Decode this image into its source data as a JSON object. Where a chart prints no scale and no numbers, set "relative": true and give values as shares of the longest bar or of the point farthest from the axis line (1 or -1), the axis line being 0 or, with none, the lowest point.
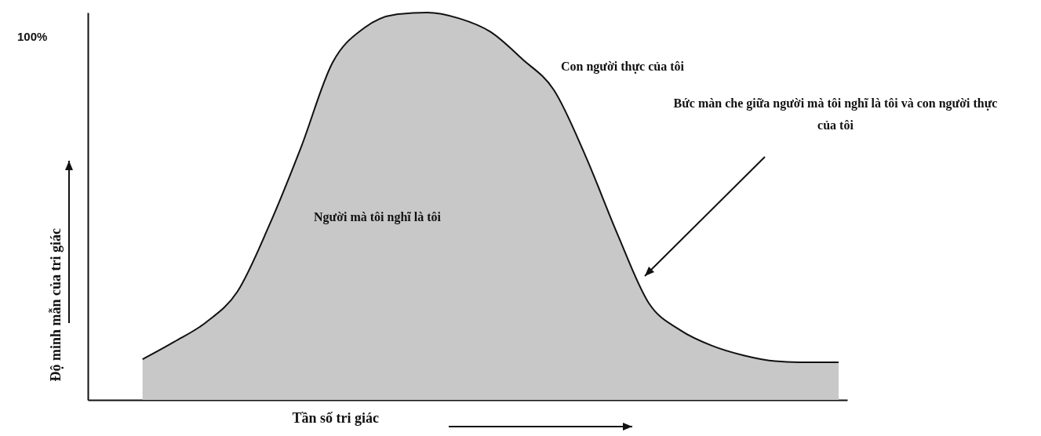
{
  "chart_data": {
    "type": "area",
    "relative": true,
    "xlabel": "Tần số tri giác",
    "ylabel": "Độ minh mẫn của tri giác",
    "categories": [
      null,
      null,
      null,
      null,
      null,
      null,
      null,
      null,
      null,
      null,
      null,
      null,
      null,
      null,
      null,
      null,
      null,
      null,
      null,
      null,
      null,
      null,
      null
    ],
    "series": [
      {
        "color": "#c8c8c8",
        "values": [
          0.105,
          0.15,
          0.2,
          0.28,
          0.45,
          0.65,
          0.87,
          0.96,
          0.995,
          1.0,
          0.985,
          0.95,
          0.88,
          0.8,
          0.63,
          0.43,
          0.25,
          0.18,
          0.14,
          0.115,
          0.1,
          0.097,
          0.097
        ]
      }
    ],
    "annotations": [
      "100%",
      "Con người thực của tôi",
      "Bức màn che giữa người mà tôi nghĩ là tôi và con người thực của tôi",
      "Người mà tôi nghĩ là tôi"
    ]
  }
}
